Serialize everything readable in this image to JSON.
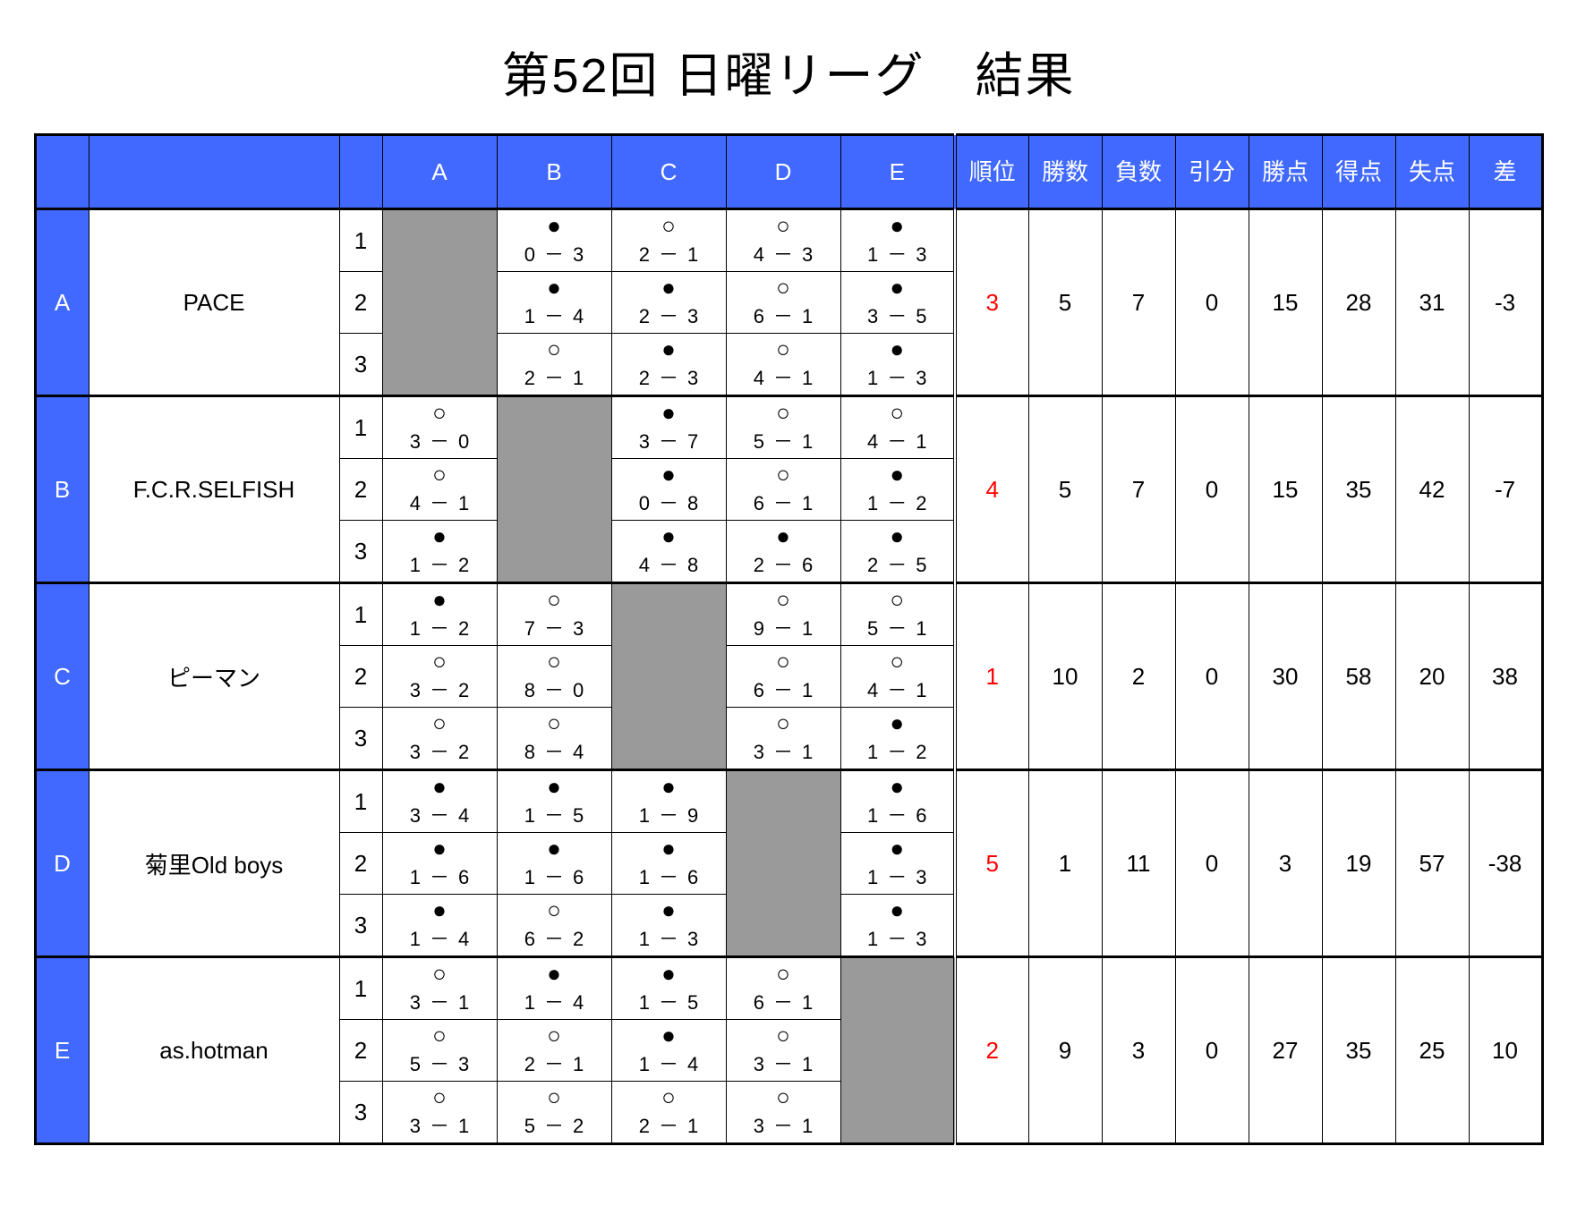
{
  "title": "第52回 日曜リーグ　結果",
  "opponent_letters": [
    "A",
    "B",
    "C",
    "D",
    "E"
  ],
  "stat_headers": [
    "順位",
    "勝数",
    "負数",
    "引分",
    "勝点",
    "得点",
    "失点",
    "差"
  ],
  "colors": {
    "header_bg": "#4169ff",
    "header_fg": "#ffffff",
    "diag_bg": "#9a9a9a",
    "rank_color": "#ff0000",
    "border": "#000000",
    "bg": "#ffffff"
  },
  "teams": [
    {
      "letter": "A",
      "name": "PACE",
      "stats": {
        "rank": "3",
        "wins": "5",
        "losses": "7",
        "draws": "0",
        "points": "15",
        "gf": "28",
        "ga": "31",
        "diff": "-3"
      },
      "rounds": [
        {
          "vs": {
            "B": {
              "r": "L",
              "s1": "0",
              "s2": "3"
            },
            "C": {
              "r": "W",
              "s1": "2",
              "s2": "1"
            },
            "D": {
              "r": "W",
              "s1": "4",
              "s2": "3"
            },
            "E": {
              "r": "L",
              "s1": "1",
              "s2": "3"
            }
          }
        },
        {
          "vs": {
            "B": {
              "r": "L",
              "s1": "1",
              "s2": "4"
            },
            "C": {
              "r": "L",
              "s1": "2",
              "s2": "3"
            },
            "D": {
              "r": "W",
              "s1": "6",
              "s2": "1"
            },
            "E": {
              "r": "L",
              "s1": "3",
              "s2": "5"
            }
          }
        },
        {
          "vs": {
            "B": {
              "r": "W",
              "s1": "2",
              "s2": "1"
            },
            "C": {
              "r": "L",
              "s1": "2",
              "s2": "3"
            },
            "D": {
              "r": "W",
              "s1": "4",
              "s2": "1"
            },
            "E": {
              "r": "L",
              "s1": "1",
              "s2": "3"
            }
          }
        }
      ]
    },
    {
      "letter": "B",
      "name": "F.C.R.SELFISH",
      "stats": {
        "rank": "4",
        "wins": "5",
        "losses": "7",
        "draws": "0",
        "points": "15",
        "gf": "35",
        "ga": "42",
        "diff": "-7"
      },
      "rounds": [
        {
          "vs": {
            "A": {
              "r": "W",
              "s1": "3",
              "s2": "0"
            },
            "C": {
              "r": "L",
              "s1": "3",
              "s2": "7"
            },
            "D": {
              "r": "W",
              "s1": "5",
              "s2": "1"
            },
            "E": {
              "r": "W",
              "s1": "4",
              "s2": "1"
            }
          }
        },
        {
          "vs": {
            "A": {
              "r": "W",
              "s1": "4",
              "s2": "1"
            },
            "C": {
              "r": "L",
              "s1": "0",
              "s2": "8"
            },
            "D": {
              "r": "W",
              "s1": "6",
              "s2": "1"
            },
            "E": {
              "r": "L",
              "s1": "1",
              "s2": "2"
            }
          }
        },
        {
          "vs": {
            "A": {
              "r": "L",
              "s1": "1",
              "s2": "2"
            },
            "C": {
              "r": "L",
              "s1": "4",
              "s2": "8"
            },
            "D": {
              "r": "L",
              "s1": "2",
              "s2": "6"
            },
            "E": {
              "r": "L",
              "s1": "2",
              "s2": "5"
            }
          }
        }
      ]
    },
    {
      "letter": "C",
      "name": "ピーマン",
      "stats": {
        "rank": "1",
        "wins": "10",
        "losses": "2",
        "draws": "0",
        "points": "30",
        "gf": "58",
        "ga": "20",
        "diff": "38"
      },
      "rounds": [
        {
          "vs": {
            "A": {
              "r": "L",
              "s1": "1",
              "s2": "2"
            },
            "B": {
              "r": "W",
              "s1": "7",
              "s2": "3"
            },
            "D": {
              "r": "W",
              "s1": "9",
              "s2": "1"
            },
            "E": {
              "r": "W",
              "s1": "5",
              "s2": "1"
            }
          }
        },
        {
          "vs": {
            "A": {
              "r": "W",
              "s1": "3",
              "s2": "2"
            },
            "B": {
              "r": "W",
              "s1": "8",
              "s2": "0"
            },
            "D": {
              "r": "W",
              "s1": "6",
              "s2": "1"
            },
            "E": {
              "r": "W",
              "s1": "4",
              "s2": "1"
            }
          }
        },
        {
          "vs": {
            "A": {
              "r": "W",
              "s1": "3",
              "s2": "2"
            },
            "B": {
              "r": "W",
              "s1": "8",
              "s2": "4"
            },
            "D": {
              "r": "W",
              "s1": "3",
              "s2": "1"
            },
            "E": {
              "r": "L",
              "s1": "1",
              "s2": "2"
            }
          }
        }
      ]
    },
    {
      "letter": "D",
      "name": "菊里Old boys",
      "stats": {
        "rank": "5",
        "wins": "1",
        "losses": "11",
        "draws": "0",
        "points": "3",
        "gf": "19",
        "ga": "57",
        "diff": "-38"
      },
      "rounds": [
        {
          "vs": {
            "A": {
              "r": "L",
              "s1": "3",
              "s2": "4"
            },
            "B": {
              "r": "L",
              "s1": "1",
              "s2": "5"
            },
            "C": {
              "r": "L",
              "s1": "1",
              "s2": "9"
            },
            "E": {
              "r": "L",
              "s1": "1",
              "s2": "6"
            }
          }
        },
        {
          "vs": {
            "A": {
              "r": "L",
              "s1": "1",
              "s2": "6"
            },
            "B": {
              "r": "L",
              "s1": "1",
              "s2": "6"
            },
            "C": {
              "r": "L",
              "s1": "1",
              "s2": "6"
            },
            "E": {
              "r": "L",
              "s1": "1",
              "s2": "3"
            }
          }
        },
        {
          "vs": {
            "A": {
              "r": "L",
              "s1": "1",
              "s2": "4"
            },
            "B": {
              "r": "W",
              "s1": "6",
              "s2": "2"
            },
            "C": {
              "r": "L",
              "s1": "1",
              "s2": "3"
            },
            "E": {
              "r": "L",
              "s1": "1",
              "s2": "3"
            }
          }
        }
      ]
    },
    {
      "letter": "E",
      "name": "as.hotman",
      "stats": {
        "rank": "2",
        "wins": "9",
        "losses": "3",
        "draws": "0",
        "points": "27",
        "gf": "35",
        "ga": "25",
        "diff": "10"
      },
      "rounds": [
        {
          "vs": {
            "A": {
              "r": "W",
              "s1": "3",
              "s2": "1"
            },
            "B": {
              "r": "L",
              "s1": "1",
              "s2": "4"
            },
            "C": {
              "r": "L",
              "s1": "1",
              "s2": "5"
            },
            "D": {
              "r": "W",
              "s1": "6",
              "s2": "1"
            }
          }
        },
        {
          "vs": {
            "A": {
              "r": "W",
              "s1": "5",
              "s2": "3"
            },
            "B": {
              "r": "W",
              "s1": "2",
              "s2": "1"
            },
            "C": {
              "r": "L",
              "s1": "1",
              "s2": "4"
            },
            "D": {
              "r": "W",
              "s1": "3",
              "s2": "1"
            }
          }
        },
        {
          "vs": {
            "A": {
              "r": "W",
              "s1": "3",
              "s2": "1"
            },
            "B": {
              "r": "W",
              "s1": "5",
              "s2": "2"
            },
            "C": {
              "r": "W",
              "s1": "2",
              "s2": "1"
            },
            "D": {
              "r": "W",
              "s1": "3",
              "s2": "1"
            }
          }
        }
      ]
    }
  ]
}
